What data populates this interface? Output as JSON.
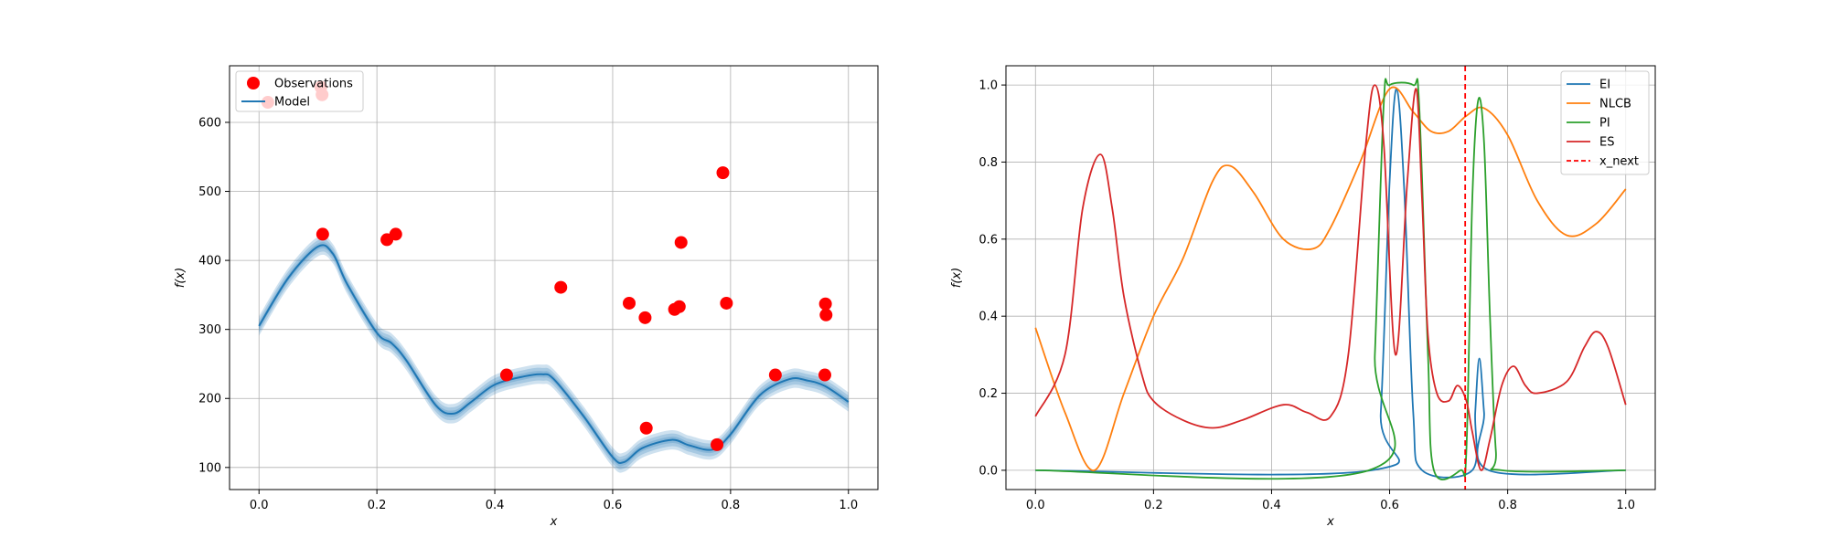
{
  "chart_data": [
    {
      "type": "scatter",
      "title": "",
      "xlabel": "x",
      "ylabel": "f(x)",
      "xlim": [
        -0.05,
        1.05
      ],
      "ylim": [
        68,
        682
      ],
      "xticks": [
        0.0,
        0.2,
        0.4,
        0.6,
        0.8,
        1.0
      ],
      "xtick_labels": [
        "0.0",
        "0.2",
        "0.4",
        "0.6",
        "0.8",
        "1.0"
      ],
      "yticks": [
        100,
        200,
        300,
        400,
        500,
        600
      ],
      "ytick_labels": [
        "100",
        "200",
        "300",
        "400",
        "500",
        "600"
      ],
      "grid": true,
      "legend_position": "upper-left",
      "legend": [
        "Observations",
        "Model"
      ],
      "colors": {
        "observations": "#ff0000",
        "model": "#1f77b4",
        "band": "#1f77b4"
      },
      "observations": {
        "name": "Observations",
        "x": [
          0.015,
          0.105,
          0.107,
          0.108,
          0.217,
          0.232,
          0.42,
          0.512,
          0.628,
          0.655,
          0.657,
          0.705,
          0.713,
          0.716,
          0.777,
          0.787,
          0.793,
          0.876,
          0.96,
          0.961,
          0.962
        ],
        "y": [
          629,
          651,
          640,
          438,
          430,
          438,
          234,
          361,
          338,
          317,
          157,
          329,
          333,
          426,
          133,
          527,
          338,
          234,
          234,
          337,
          321
        ]
      },
      "model": {
        "name": "Model",
        "x": [
          0.0,
          0.05,
          0.1,
          0.125,
          0.15,
          0.2,
          0.225,
          0.25,
          0.3,
          0.33,
          0.36,
          0.4,
          0.45,
          0.48,
          0.5,
          0.55,
          0.6,
          0.62,
          0.65,
          0.7,
          0.73,
          0.77,
          0.8,
          0.85,
          0.9,
          0.93,
          0.96,
          1.0
        ],
        "y": [
          305,
          375,
          420,
          410,
          365,
          295,
          280,
          255,
          190,
          178,
          195,
          220,
          232,
          235,
          228,
          175,
          115,
          108,
          128,
          140,
          132,
          126,
          148,
          205,
          228,
          226,
          218,
          195
        ],
        "band_halfwidth": [
          14,
          14,
          14,
          14,
          14,
          14,
          14,
          14,
          14,
          14,
          14,
          14,
          14,
          14,
          14,
          14,
          14,
          14,
          14,
          14,
          14,
          14,
          14,
          14,
          14,
          14,
          14,
          14
        ]
      }
    },
    {
      "type": "line",
      "title": "",
      "xlabel": "x",
      "ylabel": "f(x)",
      "xlim": [
        -0.05,
        1.05
      ],
      "ylim": [
        -0.05,
        1.05
      ],
      "xticks": [
        0.0,
        0.2,
        0.4,
        0.6,
        0.8,
        1.0
      ],
      "xtick_labels": [
        "0.0",
        "0.2",
        "0.4",
        "0.6",
        "0.8",
        "1.0"
      ],
      "yticks": [
        0.0,
        0.2,
        0.4,
        0.6,
        0.8,
        1.0
      ],
      "ytick_labels": [
        "0.0",
        "0.2",
        "0.4",
        "0.6",
        "0.8",
        "1.0"
      ],
      "grid": true,
      "legend_position": "upper-right",
      "x_next": {
        "name": "x_next",
        "x": 0.728,
        "color": "#ff0000",
        "style": "dashed"
      },
      "series": [
        {
          "name": "EI",
          "color": "#1f77b4",
          "x": [
            0.0,
            0.57,
            0.585,
            0.6,
            0.612,
            0.625,
            0.64,
            0.655,
            0.74,
            0.745,
            0.752,
            0.76,
            0.768,
            1.0
          ],
          "y": [
            0.0,
            0.0,
            0.15,
            0.75,
            0.99,
            0.72,
            0.15,
            0.0,
            0.0,
            0.15,
            0.29,
            0.15,
            0.0,
            0.0
          ]
        },
        {
          "name": "NLCB",
          "color": "#ff7f0e",
          "x": [
            0.0,
            0.05,
            0.1,
            0.15,
            0.2,
            0.25,
            0.3,
            0.33,
            0.37,
            0.42,
            0.47,
            0.5,
            0.55,
            0.6,
            0.64,
            0.67,
            0.7,
            0.73,
            0.76,
            0.8,
            0.85,
            0.9,
            0.95,
            1.0
          ],
          "y": [
            0.37,
            0.15,
            0.0,
            0.2,
            0.4,
            0.55,
            0.75,
            0.79,
            0.72,
            0.6,
            0.575,
            0.63,
            0.8,
            0.99,
            0.93,
            0.88,
            0.88,
            0.92,
            0.94,
            0.87,
            0.7,
            0.61,
            0.64,
            0.73
          ]
        },
        {
          "name": "PI",
          "color": "#2ca02c",
          "x": [
            0.0,
            0.565,
            0.575,
            0.59,
            0.6,
            0.64,
            0.65,
            0.665,
            0.675,
            0.72,
            0.73,
            0.74,
            0.75,
            0.76,
            0.77,
            0.78,
            0.79,
            1.0
          ],
          "y": [
            0.0,
            0.0,
            0.3,
            0.95,
            1.0,
            1.0,
            0.95,
            0.3,
            0.0,
            0.0,
            0.05,
            0.7,
            0.96,
            0.85,
            0.4,
            0.05,
            0.0,
            0.0
          ]
        },
        {
          "name": "ES",
          "color": "#d62728",
          "x": [
            0.0,
            0.05,
            0.08,
            0.11,
            0.13,
            0.15,
            0.18,
            0.2,
            0.25,
            0.3,
            0.35,
            0.42,
            0.46,
            0.5,
            0.53,
            0.56,
            0.575,
            0.59,
            0.61,
            0.63,
            0.645,
            0.655,
            0.665,
            0.68,
            0.7,
            0.715,
            0.73,
            0.74,
            0.755,
            0.77,
            0.79,
            0.81,
            0.83,
            0.85,
            0.9,
            0.93,
            0.95,
            0.97,
            1.0
          ],
          "y": [
            0.14,
            0.3,
            0.68,
            0.82,
            0.68,
            0.45,
            0.25,
            0.18,
            0.13,
            0.11,
            0.13,
            0.17,
            0.15,
            0.14,
            0.3,
            0.85,
            1.0,
            0.85,
            0.3,
            0.75,
            0.99,
            0.7,
            0.35,
            0.2,
            0.18,
            0.22,
            0.18,
            0.1,
            0.0,
            0.08,
            0.22,
            0.27,
            0.22,
            0.2,
            0.23,
            0.32,
            0.36,
            0.32,
            0.17
          ]
        }
      ]
    }
  ]
}
